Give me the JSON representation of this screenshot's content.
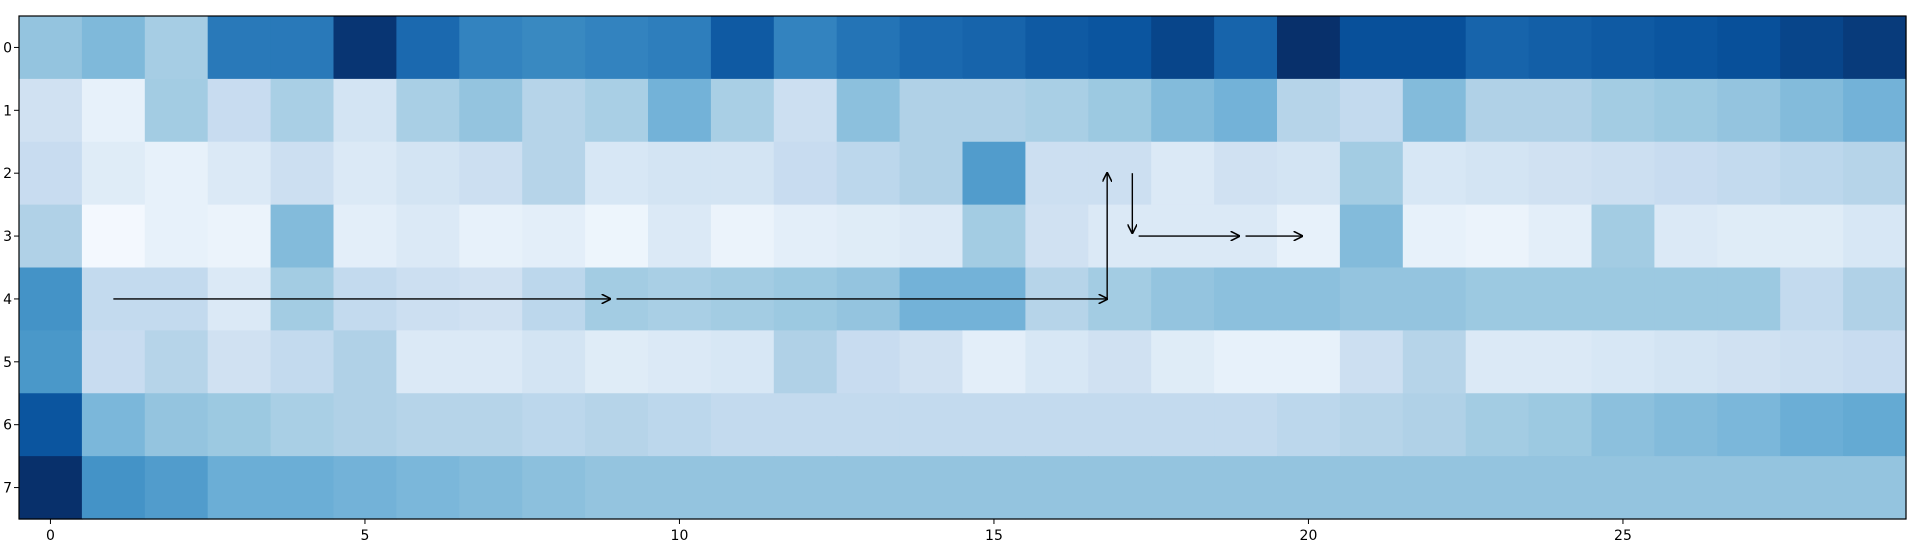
{
  "chart_data": {
    "type": "heatmap",
    "colormap": "Blues",
    "rows": 8,
    "cols": 30,
    "x_ticks": [
      0,
      5,
      10,
      15,
      20,
      25
    ],
    "y_ticks": [
      0,
      1,
      2,
      3,
      4,
      5,
      6,
      7
    ],
    "xlim": [
      -0.5,
      29.5
    ],
    "ylim": [
      7.5,
      -0.5
    ],
    "values_normalized": [
      [
        0.4,
        0.45,
        0.35,
        0.72,
        0.72,
        0.98,
        0.78,
        0.68,
        0.66,
        0.68,
        0.7,
        0.84,
        0.68,
        0.74,
        0.78,
        0.8,
        0.84,
        0.86,
        0.92,
        0.8,
        1.0,
        0.88,
        0.88,
        0.8,
        0.82,
        0.84,
        0.86,
        0.88,
        0.92,
        0.96
      ],
      [
        0.2,
        0.08,
        0.36,
        0.24,
        0.34,
        0.18,
        0.34,
        0.4,
        0.3,
        0.34,
        0.48,
        0.34,
        0.22,
        0.42,
        0.32,
        0.32,
        0.34,
        0.38,
        0.44,
        0.48,
        0.3,
        0.26,
        0.44,
        0.32,
        0.32,
        0.36,
        0.38,
        0.4,
        0.44,
        0.48
      ],
      [
        0.24,
        0.12,
        0.08,
        0.14,
        0.22,
        0.14,
        0.18,
        0.22,
        0.3,
        0.16,
        0.18,
        0.18,
        0.24,
        0.28,
        0.32,
        0.58,
        0.22,
        0.22,
        0.14,
        0.2,
        0.18,
        0.36,
        0.16,
        0.18,
        0.2,
        0.22,
        0.24,
        0.26,
        0.28,
        0.3
      ],
      [
        0.32,
        0.02,
        0.08,
        0.06,
        0.44,
        0.1,
        0.14,
        0.08,
        0.1,
        0.05,
        0.14,
        0.06,
        0.1,
        0.12,
        0.14,
        0.36,
        0.2,
        0.14,
        0.14,
        0.14,
        0.08,
        0.44,
        0.08,
        0.06,
        0.1,
        0.36,
        0.14,
        0.12,
        0.12,
        0.16
      ],
      [
        0.62,
        0.26,
        0.26,
        0.14,
        0.36,
        0.26,
        0.22,
        0.2,
        0.28,
        0.36,
        0.34,
        0.36,
        0.38,
        0.4,
        0.48,
        0.48,
        0.3,
        0.36,
        0.4,
        0.42,
        0.42,
        0.4,
        0.4,
        0.38,
        0.38,
        0.38,
        0.38,
        0.38,
        0.26,
        0.32
      ],
      [
        0.6,
        0.24,
        0.3,
        0.2,
        0.26,
        0.32,
        0.14,
        0.14,
        0.18,
        0.12,
        0.14,
        0.16,
        0.32,
        0.24,
        0.2,
        0.1,
        0.16,
        0.2,
        0.12,
        0.08,
        0.08,
        0.22,
        0.3,
        0.14,
        0.14,
        0.16,
        0.18,
        0.2,
        0.22,
        0.24
      ],
      [
        0.86,
        0.46,
        0.4,
        0.38,
        0.34,
        0.32,
        0.3,
        0.3,
        0.28,
        0.3,
        0.28,
        0.26,
        0.26,
        0.26,
        0.26,
        0.26,
        0.26,
        0.26,
        0.26,
        0.26,
        0.28,
        0.3,
        0.32,
        0.36,
        0.38,
        0.42,
        0.44,
        0.46,
        0.5,
        0.52
      ],
      [
        1.0,
        0.62,
        0.58,
        0.5,
        0.5,
        0.48,
        0.46,
        0.44,
        0.42,
        0.4,
        0.4,
        0.4,
        0.4,
        0.4,
        0.4,
        0.4,
        0.4,
        0.4,
        0.4,
        0.4,
        0.4,
        0.4,
        0.4,
        0.4,
        0.4,
        0.4,
        0.4,
        0.4,
        0.4,
        0.4
      ]
    ],
    "annotations": [
      {
        "type": "arrow",
        "from": [
          1.0,
          4.0
        ],
        "to": [
          8.9,
          4.0
        ]
      },
      {
        "type": "arrow",
        "from": [
          9.0,
          4.0
        ],
        "to": [
          16.8,
          4.0
        ]
      },
      {
        "type": "arrow",
        "from": [
          16.8,
          4.0
        ],
        "to": [
          16.8,
          2.0
        ]
      },
      {
        "type": "arrow",
        "from": [
          17.2,
          2.0
        ],
        "to": [
          17.2,
          2.95
        ]
      },
      {
        "type": "arrow",
        "from": [
          17.3,
          3.0
        ],
        "to": [
          18.9,
          3.0
        ]
      },
      {
        "type": "arrow",
        "from": [
          19.0,
          3.0
        ],
        "to": [
          19.9,
          3.0
        ]
      }
    ],
    "grid": false,
    "legend": "none"
  }
}
